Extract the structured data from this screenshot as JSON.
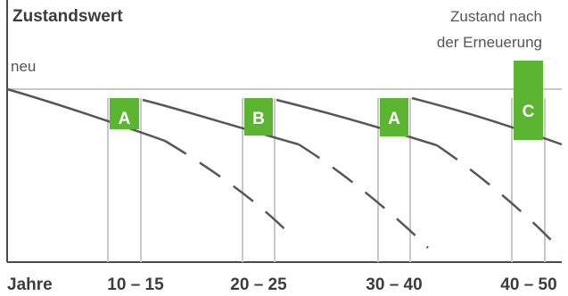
{
  "chart_data": {
    "type": "line",
    "ylabel": "Zustandswert",
    "y_reference_label": "neu",
    "xlabel": "Jahre",
    "x_tick_labels": [
      "10 – 15",
      "20 – 25",
      "30 – 40",
      "40 – 50"
    ],
    "annotation": "Zustand nach der Erneuerung",
    "annotation_lines": [
      "Zustand nach",
      "der Erneuerung"
    ],
    "interventions": [
      {
        "letter": "A",
        "x_range_label": "10 – 15"
      },
      {
        "letter": "B",
        "x_range_label": "20 – 25"
      },
      {
        "letter": "A",
        "x_range_label": "30 – 40"
      },
      {
        "letter": "C",
        "x_range_label": "40 – 50"
      }
    ],
    "grid": false,
    "colors": {
      "accent": "#5cb531",
      "curve": "#575757",
      "axis": "#4a4a4a",
      "gridline": "#c8c8c8"
    }
  }
}
